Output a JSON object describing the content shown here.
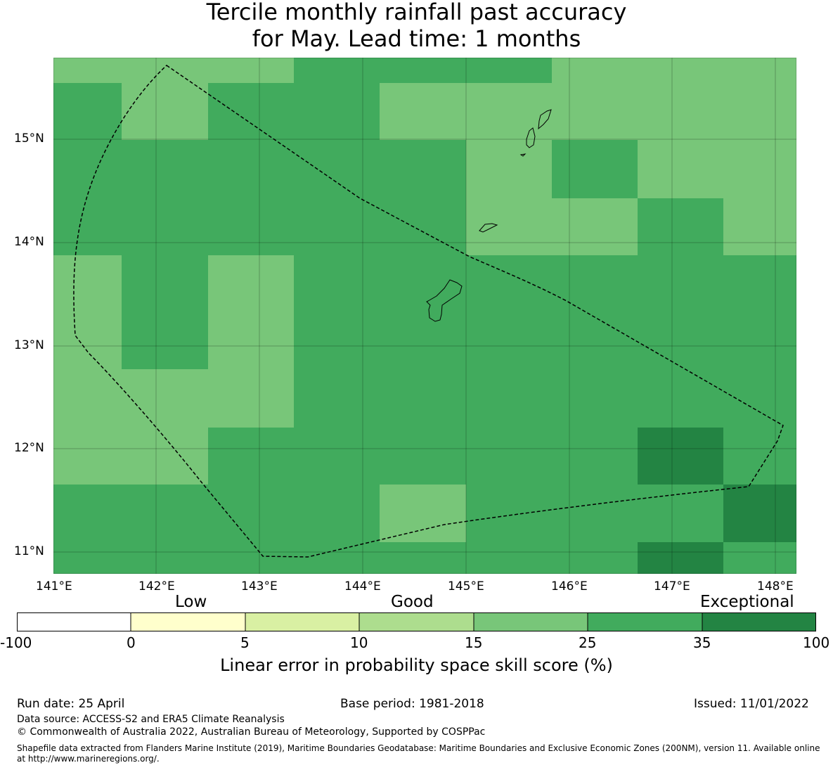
{
  "title": {
    "line1": "Tercile monthly rainfall past accuracy",
    "line2": "for May. Lead time: 1 months"
  },
  "map": {
    "lat_labels": [
      "15°N",
      "14°N",
      "13°N",
      "12°N",
      "11°N"
    ],
    "lon_labels": [
      "141°E",
      "142°E",
      "143°E",
      "144°E",
      "145°E",
      "146°E",
      "147°E",
      "148°E"
    ],
    "colors": {
      "good": "#78c679",
      "verygood": "#41ab5d",
      "exceptional": "#238443",
      "boundary": "#000000"
    }
  },
  "colorbar": {
    "categories": [
      "Low",
      "Good",
      "Exceptional"
    ],
    "ticks": [
      "-100",
      "0",
      "5",
      "10",
      "15",
      "25",
      "35",
      "100"
    ],
    "colors": [
      "#ffffff",
      "#ffffcc",
      "#d9f0a3",
      "#addd8e",
      "#78c679",
      "#41ab5d",
      "#238443"
    ],
    "label": "Linear error in probability space skill score (%)"
  },
  "footer": {
    "run_date": "Run date: 25 April",
    "base_period": "Base period: 1981-2018",
    "issued": "Issued: 11/01/2022",
    "data_source": "Data source: ACCESS-S2 and ERA5 Climate Reanalysis",
    "copyright": "© Commonwealth of Australia 2022, Australian Bureau of Meteorology, Supported by COSPPac",
    "shapefile": "Shapefile data extracted from Flanders Marine Institute (2019), Maritime Boundaries Geodatabase: Maritime Boundaries and Exclusive Economic Zones (200NM), version 11. Available online at http://www.marineregions.org/."
  }
}
